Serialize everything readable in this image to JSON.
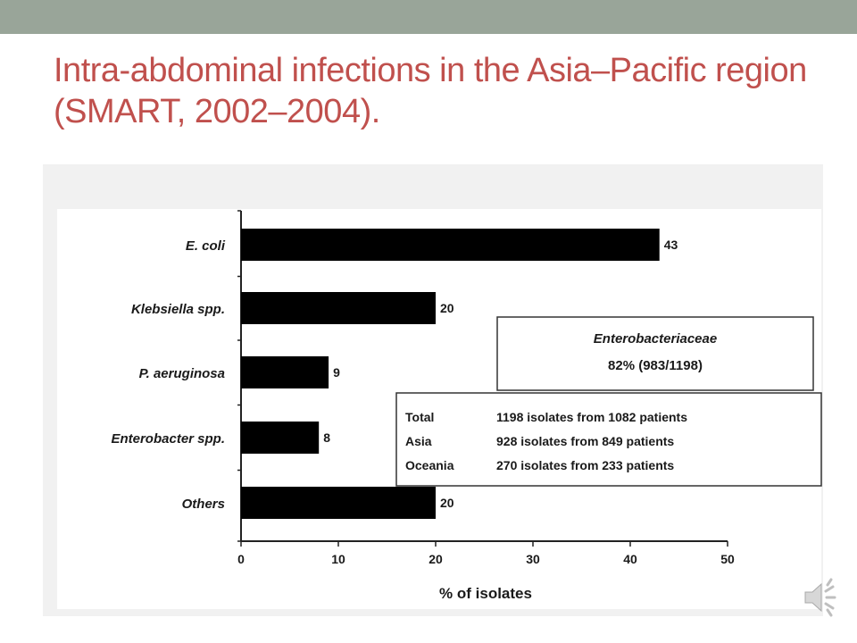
{
  "slide": {
    "title": "Intra-abdominal infections in the Asia–Pacific region (SMART, 2002–2004).",
    "colors": {
      "title": "#c0504d",
      "top_bar": "#99a599",
      "bars": "#000000"
    }
  },
  "chart_data": {
    "type": "bar",
    "orientation": "horizontal",
    "categories": [
      "E. coli",
      "Klebsiella spp.",
      "P. aeruginosa",
      "Enterobacter spp.",
      "Others"
    ],
    "values": [
      43,
      20,
      9,
      8,
      20
    ],
    "value_labels": [
      "43",
      "20",
      "9",
      "8",
      "20"
    ],
    "xlabel": "% of isolates",
    "xlim": [
      0,
      50
    ],
    "xticks": [
      "0",
      "10",
      "20",
      "30",
      "40",
      "50"
    ],
    "grid": false,
    "annotations": {
      "enterobacteriaceae": {
        "title": "Enterobacteriaceae",
        "value": "82% (983/1198)"
      },
      "totals": [
        {
          "label": "Total",
          "text": "1198 isolates from 1082 patients"
        },
        {
          "label": "Asia",
          "text": "928 isolates from 849 patients"
        },
        {
          "label": "Oceania",
          "text": "270 isolates from 233 patients"
        }
      ]
    }
  },
  "icons": {
    "speaker": "speaker-icon"
  }
}
